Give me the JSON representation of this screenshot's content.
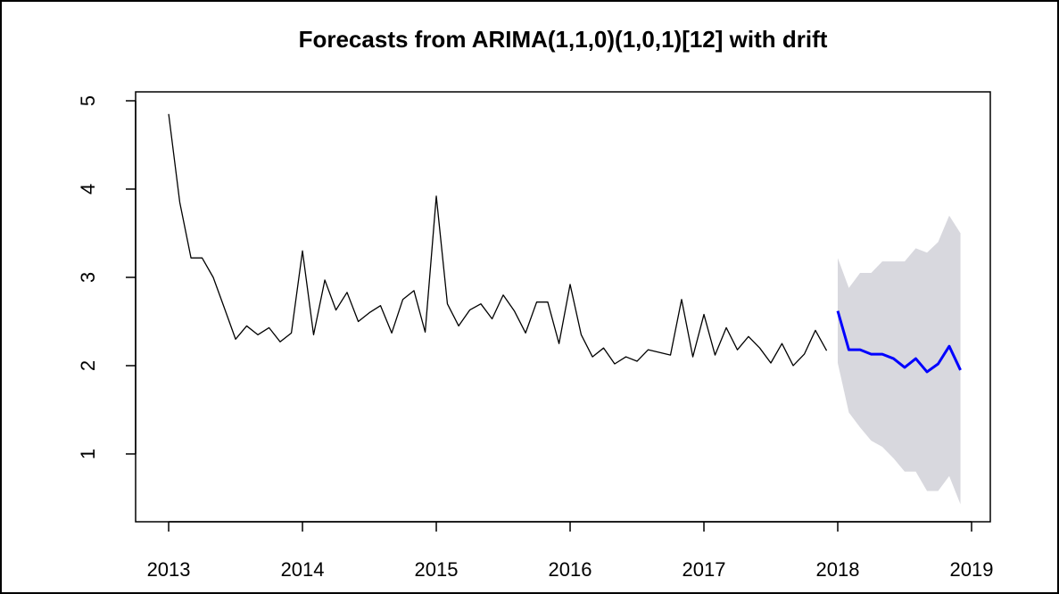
{
  "chart_data": {
    "type": "line",
    "title": "Forecasts from ARIMA(1,1,0)(1,0,1)[12] with drift",
    "xlim": [
      2012.753,
      2019.14
    ],
    "ylim": [
      0.232,
      5.101
    ],
    "xticks": [
      2013,
      2014,
      2015,
      2016,
      2017,
      2018,
      2019
    ],
    "yticks": [
      1,
      2,
      3,
      4,
      5
    ],
    "series": [
      {
        "type": "band",
        "color": "#d8d8de",
        "x": [
          2018,
          2018.083,
          2018.167,
          2018.25,
          2018.333,
          2018.417,
          2018.5,
          2018.583,
          2018.667,
          2018.75,
          2018.833,
          2018.917
        ],
        "lower": [
          2.03,
          1.47,
          1.3,
          1.15,
          1.08,
          0.95,
          0.8,
          0.8,
          0.58,
          0.58,
          0.75,
          0.43
        ],
        "upper": [
          3.22,
          2.88,
          3.05,
          3.05,
          3.18,
          3.18,
          3.18,
          3.33,
          3.28,
          3.4,
          3.7,
          3.5
        ]
      },
      {
        "type": "line",
        "color": "#000000",
        "width": 1.3,
        "x": [
          2013,
          2013.083,
          2013.167,
          2013.25,
          2013.333,
          2013.417,
          2013.5,
          2013.583,
          2013.667,
          2013.75,
          2013.833,
          2013.917,
          2014,
          2014.083,
          2014.167,
          2014.25,
          2014.333,
          2014.417,
          2014.5,
          2014.583,
          2014.667,
          2014.75,
          2014.833,
          2014.917,
          2015,
          2015.083,
          2015.167,
          2015.25,
          2015.333,
          2015.417,
          2015.5,
          2015.583,
          2015.667,
          2015.75,
          2015.833,
          2015.917,
          2016,
          2016.083,
          2016.167,
          2016.25,
          2016.333,
          2016.417,
          2016.5,
          2016.583,
          2016.667,
          2016.75,
          2016.833,
          2016.917,
          2017,
          2017.083,
          2017.167,
          2017.25,
          2017.333,
          2017.417,
          2017.5,
          2017.583,
          2017.667,
          2017.75,
          2017.833,
          2017.917
        ],
        "values": [
          4.85,
          3.85,
          3.22,
          3.22,
          3.0,
          2.65,
          2.3,
          2.45,
          2.35,
          2.43,
          2.27,
          2.37,
          3.3,
          2.35,
          2.97,
          2.63,
          2.83,
          2.5,
          2.6,
          2.68,
          2.37,
          2.75,
          2.85,
          2.38,
          3.92,
          2.7,
          2.45,
          2.63,
          2.7,
          2.53,
          2.8,
          2.62,
          2.37,
          2.72,
          2.72,
          2.25,
          2.92,
          2.35,
          2.1,
          2.2,
          2.02,
          2.1,
          2.05,
          2.18,
          2.15,
          2.12,
          2.75,
          2.1,
          2.58,
          2.12,
          2.43,
          2.18,
          2.33,
          2.2,
          2.03,
          2.25,
          2.0,
          2.13,
          2.4,
          2.17
        ]
      },
      {
        "type": "line",
        "color": "#0000ff",
        "width": 3,
        "x": [
          2018,
          2018.083,
          2018.167,
          2018.25,
          2018.333,
          2018.417,
          2018.5,
          2018.583,
          2018.667,
          2018.75,
          2018.833,
          2018.917
        ],
        "values": [
          2.62,
          2.18,
          2.18,
          2.13,
          2.13,
          2.08,
          1.98,
          2.08,
          1.93,
          2.02,
          2.22,
          1.95
        ]
      }
    ]
  }
}
